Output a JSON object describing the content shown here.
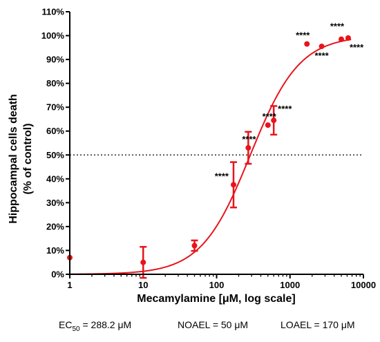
{
  "chart_data": {
    "type": "scatter",
    "xlabel": "Mecamylamine [μM, log scale]",
    "ylabel_line1": "Hippocampal cells death",
    "ylabel_line2": "(% of control)",
    "x_scale": "log",
    "xlim": [
      1,
      10000
    ],
    "ylim": [
      0,
      110
    ],
    "x_ticks": [
      1,
      10,
      100,
      1000,
      10000
    ],
    "x_tick_labels": [
      "1",
      "10",
      "100",
      "1000",
      "10000"
    ],
    "y_ticks": [
      0,
      10,
      20,
      30,
      40,
      50,
      60,
      70,
      80,
      90,
      100,
      110
    ],
    "y_tick_labels": [
      "0%",
      "10%",
      "20%",
      "30%",
      "40%",
      "50%",
      "60%",
      "70%",
      "80%",
      "90%",
      "100%",
      "110%"
    ],
    "grid": false,
    "reference_line": {
      "y": 50,
      "style": "dotted"
    },
    "color": "#e8141b",
    "points": [
      {
        "x": 1,
        "y": 7,
        "err": null,
        "sig": ""
      },
      {
        "x": 10,
        "y": 5,
        "err": 6.5,
        "sig": ""
      },
      {
        "x": 50,
        "y": 12,
        "err": 2.2,
        "sig": ""
      },
      {
        "x": 170,
        "y": 37.5,
        "err": 9.5,
        "sig": "****"
      },
      {
        "x": 270,
        "y": 53,
        "err": 6.7,
        "sig": "****"
      },
      {
        "x": 500,
        "y": 62.5,
        "err": null,
        "sig": "****"
      },
      {
        "x": 600,
        "y": 64.5,
        "err": 6,
        "sig": "****"
      },
      {
        "x": 1700,
        "y": 96.5,
        "err": null,
        "sig": "****"
      },
      {
        "x": 2700,
        "y": 95.5,
        "err": null,
        "sig": "****"
      },
      {
        "x": 5000,
        "y": 98.5,
        "err": null,
        "sig": "****"
      },
      {
        "x": 6200,
        "y": 99,
        "err": null,
        "sig": "****"
      }
    ],
    "fit": {
      "type": "sigmoid",
      "ec50": 288.2,
      "bottom": 0,
      "top": 100,
      "hill": 1.3
    }
  },
  "footer": {
    "ec50_label": "EC",
    "ec50_sub": "50",
    "ec50_value": " = 288.2 μM",
    "noael": "NOAEL = 50 μM",
    "loael": "LOAEL = 170 μM"
  }
}
